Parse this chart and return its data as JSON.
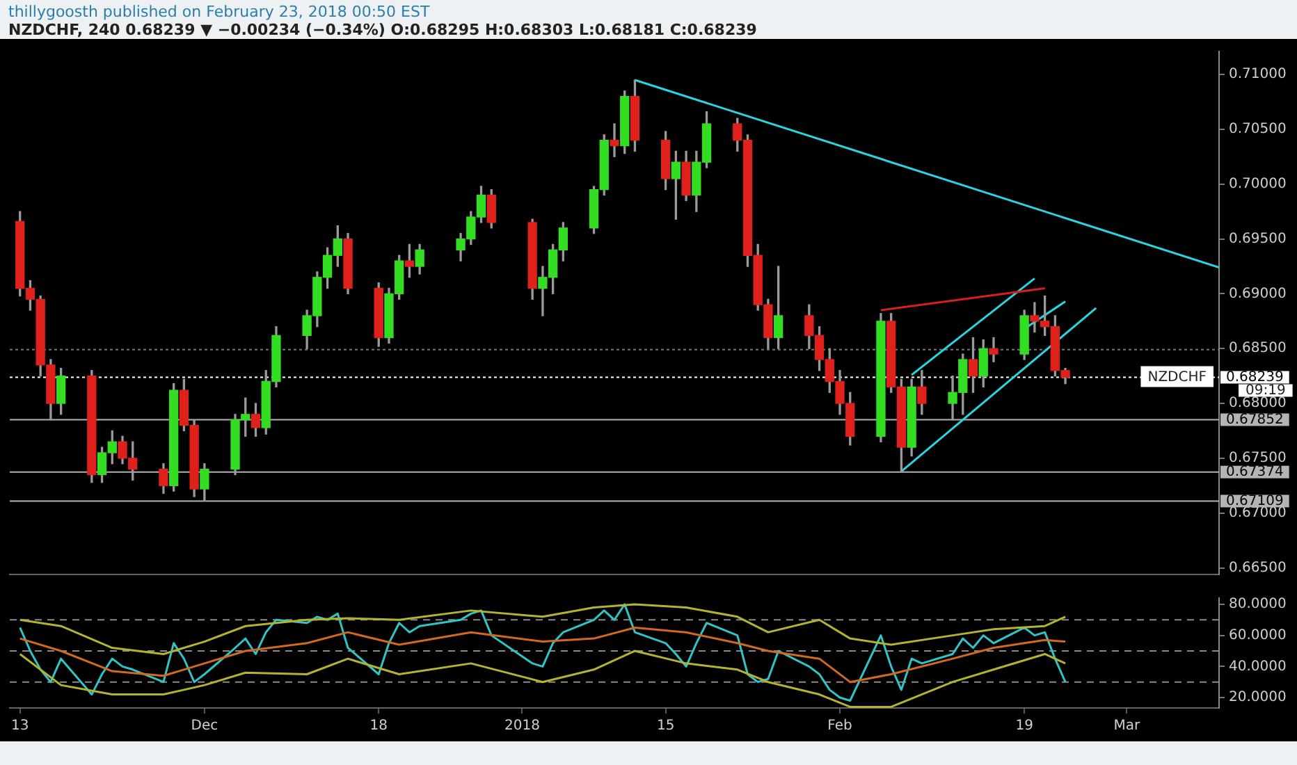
{
  "chart_data": [
    {
      "type": "candlestick",
      "title": "thillygoosth published on February 23, 2018 00:50 EST",
      "subtitle": "NZDCHF, 240 0.68239 ▼ −0.00234 (−0.34%) O:0.68295 H:0.68303 L:0.68181 C:0.68239",
      "x": [
        "2017-11-13",
        "2017-11-14",
        "2017-11-15",
        "2017-11-16",
        "2017-11-17",
        "2017-11-20",
        "2017-11-21",
        "2017-11-22",
        "2017-11-23",
        "2017-11-24",
        "2017-11-27",
        "2017-11-28",
        "2017-11-29",
        "2017-11-30",
        "2017-12-01",
        "2017-12-04",
        "2017-12-05",
        "2017-12-06",
        "2017-12-07",
        "2017-12-08",
        "2017-12-11",
        "2017-12-12",
        "2017-12-13",
        "2017-12-14",
        "2017-12-15",
        "2017-12-18",
        "2017-12-19",
        "2017-12-20",
        "2017-12-21",
        "2017-12-22",
        "2017-12-26",
        "2017-12-27",
        "2017-12-28",
        "2017-12-29",
        "2018-01-02",
        "2018-01-03",
        "2018-01-04",
        "2018-01-05",
        "2018-01-08",
        "2018-01-09",
        "2018-01-10",
        "2018-01-11",
        "2018-01-12",
        "2018-01-15",
        "2018-01-16",
        "2018-01-17",
        "2018-01-18",
        "2018-01-19",
        "2018-01-22",
        "2018-01-23",
        "2018-01-24",
        "2018-01-25",
        "2018-01-26",
        "2018-01-29",
        "2018-01-30",
        "2018-01-31",
        "2018-02-01",
        "2018-02-02",
        "2018-02-05",
        "2018-02-06",
        "2018-02-07",
        "2018-02-08",
        "2018-02-09",
        "2018-02-12",
        "2018-02-13",
        "2018-02-14",
        "2018-02-15",
        "2018-02-16",
        "2018-02-19",
        "2018-02-20",
        "2018-02-21",
        "2018-02-22",
        "2018-02-23"
      ],
      "ohlc": [
        [
          0.6966,
          0.6975,
          0.6898,
          0.6905
        ],
        [
          0.6905,
          0.6912,
          0.6885,
          0.6895
        ],
        [
          0.6895,
          0.6898,
          0.6825,
          0.6835
        ],
        [
          0.6835,
          0.684,
          0.6785,
          0.68
        ],
        [
          0.68,
          0.6832,
          0.679,
          0.6825
        ],
        [
          0.6825,
          0.683,
          0.6728,
          0.6735
        ],
        [
          0.6735,
          0.676,
          0.6728,
          0.6755
        ],
        [
          0.6755,
          0.6775,
          0.6745,
          0.6765
        ],
        [
          0.6765,
          0.677,
          0.6745,
          0.675
        ],
        [
          0.675,
          0.6765,
          0.673,
          0.674
        ],
        [
          0.674,
          0.6745,
          0.6718,
          0.6725
        ],
        [
          0.6725,
          0.6818,
          0.672,
          0.6812
        ],
        [
          0.6812,
          0.6822,
          0.6775,
          0.678
        ],
        [
          0.678,
          0.6785,
          0.6715,
          0.6722
        ],
        [
          0.6722,
          0.6745,
          0.6711,
          0.674
        ],
        [
          0.674,
          0.679,
          0.6735,
          0.6785
        ],
        [
          0.6785,
          0.6805,
          0.677,
          0.679
        ],
        [
          0.679,
          0.68,
          0.677,
          0.6778
        ],
        [
          0.6778,
          0.683,
          0.6772,
          0.682
        ],
        [
          0.682,
          0.687,
          0.6815,
          0.6862
        ],
        [
          0.6862,
          0.6885,
          0.685,
          0.688
        ],
        [
          0.688,
          0.692,
          0.687,
          0.6915
        ],
        [
          0.6915,
          0.6942,
          0.6905,
          0.6935
        ],
        [
          0.6935,
          0.6962,
          0.6925,
          0.695
        ],
        [
          0.695,
          0.6955,
          0.69,
          0.6905
        ],
        [
          0.6905,
          0.691,
          0.6852,
          0.686
        ],
        [
          0.686,
          0.6905,
          0.6855,
          0.69
        ],
        [
          0.69,
          0.6935,
          0.6895,
          0.693
        ],
        [
          0.693,
          0.6945,
          0.6915,
          0.6925
        ],
        [
          0.6925,
          0.6945,
          0.6918,
          0.694
        ],
        [
          0.694,
          0.6955,
          0.693,
          0.695
        ],
        [
          0.695,
          0.6975,
          0.6945,
          0.697
        ],
        [
          0.697,
          0.6998,
          0.6965,
          0.699
        ],
        [
          0.699,
          0.6995,
          0.696,
          0.6965
        ],
        [
          0.6965,
          0.6968,
          0.6895,
          0.6905
        ],
        [
          0.6905,
          0.6925,
          0.688,
          0.6915
        ],
        [
          0.6915,
          0.6945,
          0.69,
          0.694
        ],
        [
          0.694,
          0.6965,
          0.693,
          0.696
        ],
        [
          0.696,
          0.6998,
          0.6955,
          0.6995
        ],
        [
          0.6995,
          0.7045,
          0.699,
          0.704
        ],
        [
          0.704,
          0.7055,
          0.7025,
          0.7035
        ],
        [
          0.7035,
          0.7085,
          0.7028,
          0.708
        ],
        [
          0.708,
          0.7095,
          0.703,
          0.704
        ],
        [
          0.704,
          0.7048,
          0.6995,
          0.7005
        ],
        [
          0.7005,
          0.703,
          0.6968,
          0.702
        ],
        [
          0.702,
          0.703,
          0.6985,
          0.699
        ],
        [
          0.699,
          0.703,
          0.6975,
          0.702
        ],
        [
          0.702,
          0.7066,
          0.7015,
          0.7055
        ],
        [
          0.7055,
          0.706,
          0.703,
          0.704
        ],
        [
          0.704,
          0.7045,
          0.6925,
          0.6935
        ],
        [
          0.6935,
          0.6945,
          0.6885,
          0.689
        ],
        [
          0.689,
          0.6895,
          0.685,
          0.686
        ],
        [
          0.686,
          0.6925,
          0.685,
          0.688
        ],
        [
          0.688,
          0.689,
          0.685,
          0.6862
        ],
        [
          0.6862,
          0.687,
          0.683,
          0.684
        ],
        [
          0.684,
          0.685,
          0.681,
          0.682
        ],
        [
          0.682,
          0.683,
          0.679,
          0.68
        ],
        [
          0.68,
          0.681,
          0.6762,
          0.677
        ],
        [
          0.677,
          0.6882,
          0.6765,
          0.6875
        ],
        [
          0.6875,
          0.6882,
          0.681,
          0.6815
        ],
        [
          0.6815,
          0.6822,
          0.6737,
          0.676
        ],
        [
          0.676,
          0.6822,
          0.6752,
          0.6815
        ],
        [
          0.6815,
          0.683,
          0.679,
          0.68
        ],
        [
          0.68,
          0.6825,
          0.6785,
          0.681
        ],
        [
          0.681,
          0.6845,
          0.679,
          0.684
        ],
        [
          0.684,
          0.686,
          0.681,
          0.6825
        ],
        [
          0.6825,
          0.6858,
          0.6815,
          0.685
        ],
        [
          0.685,
          0.686,
          0.6838,
          0.6845
        ],
        [
          0.6845,
          0.6885,
          0.684,
          0.688
        ],
        [
          0.688,
          0.6892,
          0.6865,
          0.6875
        ],
        [
          0.6875,
          0.6898,
          0.6862,
          0.687
        ],
        [
          0.687,
          0.688,
          0.6825,
          0.683
        ],
        [
          0.683,
          0.6832,
          0.6818,
          0.68239
        ]
      ],
      "series": [
        {
          "type": "line",
          "color": "#2ad4e0",
          "x": [
            "2018-01-12",
            "2018-03-10"
          ],
          "values": [
            0.7095,
            0.6924
          ]
        },
        {
          "type": "line",
          "color": "#d81e1e",
          "x": [
            "2018-02-05",
            "2018-02-21"
          ],
          "values": [
            0.6885,
            0.6905
          ]
        },
        {
          "type": "line",
          "color": "#2ad4e0",
          "x": [
            "2018-02-07",
            "2018-02-26"
          ],
          "values": [
            0.6738,
            0.6887
          ]
        },
        {
          "type": "line",
          "color": "#2ad4e0",
          "x": [
            "2018-02-08",
            "2018-02-20"
          ],
          "values": [
            0.6826,
            0.6914
          ]
        },
        {
          "type": "line",
          "color": "#2ad4e0",
          "x": [
            "2018-02-19",
            "2018-02-23"
          ],
          "values": [
            0.6868,
            0.6893
          ]
        }
      ],
      "xlim": [
        "2017-11-12",
        "2018-03-10"
      ],
      "ylim": [
        0.6644,
        0.7121
      ],
      "yticks": [
        {
          "value": 0.665,
          "label": "0.66500"
        },
        {
          "value": 0.67,
          "label": "0.67000"
        },
        {
          "value": 0.675,
          "label": "0.67500"
        },
        {
          "value": 0.68,
          "label": "0.68000"
        },
        {
          "value": 0.685,
          "label": "0.68500"
        },
        {
          "value": 0.69,
          "label": "0.69000"
        },
        {
          "value": 0.695,
          "label": "0.69500"
        },
        {
          "value": 0.7,
          "label": "0.70000"
        },
        {
          "value": 0.705,
          "label": "0.70500"
        },
        {
          "value": 0.71,
          "label": "0.71000"
        }
      ],
      "tick_labels": "y",
      "grid": false,
      "legend": false,
      "ref_lines": [
        {
          "axis": "y",
          "value": 0.6849,
          "color": "#777777",
          "line_style": "dotted"
        },
        {
          "axis": "y",
          "value": 0.68239,
          "label": "0.68239",
          "color": "#ffffff",
          "line_style": "dotted"
        },
        {
          "axis": "y",
          "value": 0.67852,
          "label": "0.67852",
          "color": "#b4b4b4",
          "line_style": "solid"
        },
        {
          "axis": "y",
          "value": 0.67374,
          "label": "0.67374",
          "color": "#b4b4b4",
          "line_style": "solid"
        },
        {
          "axis": "y",
          "value": 0.67109,
          "label": "0.67109",
          "color": "#b4b4b4",
          "line_style": "solid"
        }
      ],
      "annotations": [
        {
          "text": "NZDCHF",
          "y": 0.68239
        },
        "09:19"
      ]
    },
    {
      "type": "line",
      "series": [
        {
          "color": "#b3b330",
          "x": [
            "2017-11-13",
            "2017-11-17",
            "2017-11-22",
            "2017-11-27",
            "2017-12-01",
            "2017-12-05",
            "2017-12-11",
            "2017-12-15",
            "2017-12-20",
            "2017-12-27",
            "2018-01-03",
            "2018-01-08",
            "2018-01-12",
            "2018-01-17",
            "2018-01-22",
            "2018-01-25",
            "2018-01-30",
            "2018-02-02",
            "2018-02-06",
            "2018-02-12",
            "2018-02-16",
            "2018-02-21",
            "2018-02-23"
          ],
          "values": [
            70,
            66,
            52,
            48,
            56,
            66,
            70,
            71,
            70,
            76,
            72,
            78,
            80,
            78,
            72,
            62,
            70,
            58,
            54,
            60,
            64,
            66,
            72
          ]
        },
        {
          "color": "#b3b330",
          "x": [
            "2017-11-13",
            "2017-11-17",
            "2017-11-22",
            "2017-11-27",
            "2017-12-01",
            "2017-12-05",
            "2017-12-11",
            "2017-12-15",
            "2017-12-20",
            "2017-12-27",
            "2018-01-03",
            "2018-01-08",
            "2018-01-12",
            "2018-01-17",
            "2018-01-22",
            "2018-01-25",
            "2018-01-30",
            "2018-02-02",
            "2018-02-06",
            "2018-02-12",
            "2018-02-16",
            "2018-02-21",
            "2018-02-23"
          ],
          "values": [
            48,
            28,
            22,
            22,
            28,
            36,
            35,
            45,
            35,
            42,
            30,
            38,
            50,
            42,
            38,
            30,
            22,
            14,
            14,
            30,
            38,
            48,
            42
          ]
        },
        {
          "color": "#d2691e",
          "x": [
            "2017-11-13",
            "2017-11-17",
            "2017-11-22",
            "2017-11-27",
            "2017-12-01",
            "2017-12-05",
            "2017-12-11",
            "2017-12-15",
            "2017-12-20",
            "2017-12-27",
            "2018-01-03",
            "2018-01-08",
            "2018-01-12",
            "2018-01-17",
            "2018-01-22",
            "2018-01-25",
            "2018-01-30",
            "2018-02-02",
            "2018-02-06",
            "2018-02-12",
            "2018-02-16",
            "2018-02-21",
            "2018-02-23"
          ],
          "values": [
            58,
            50,
            37,
            34,
            42,
            50,
            55,
            62,
            54,
            62,
            56,
            58,
            65,
            62,
            55,
            50,
            45,
            30,
            35,
            45,
            52,
            57,
            56
          ]
        },
        {
          "color": "#2fc4c8",
          "x": [
            "2017-11-13",
            "2017-11-14",
            "2017-11-15",
            "2017-11-16",
            "2017-11-17",
            "2017-11-20",
            "2017-11-21",
            "2017-11-22",
            "2017-11-23",
            "2017-11-24",
            "2017-11-27",
            "2017-11-28",
            "2017-11-29",
            "2017-11-30",
            "2017-12-01",
            "2017-12-04",
            "2017-12-05",
            "2017-12-06",
            "2017-12-07",
            "2017-12-08",
            "2017-12-11",
            "2017-12-12",
            "2017-12-13",
            "2017-12-14",
            "2017-12-15",
            "2017-12-18",
            "2017-12-19",
            "2017-12-20",
            "2017-12-21",
            "2017-12-22",
            "2017-12-26",
            "2017-12-27",
            "2017-12-28",
            "2017-12-29",
            "2018-01-02",
            "2018-01-03",
            "2018-01-04",
            "2018-01-05",
            "2018-01-08",
            "2018-01-09",
            "2018-01-10",
            "2018-01-11",
            "2018-01-12",
            "2018-01-15",
            "2018-01-16",
            "2018-01-17",
            "2018-01-18",
            "2018-01-19",
            "2018-01-22",
            "2018-01-23",
            "2018-01-24",
            "2018-01-25",
            "2018-01-26",
            "2018-01-29",
            "2018-01-30",
            "2018-01-31",
            "2018-02-01",
            "2018-02-02",
            "2018-02-05",
            "2018-02-06",
            "2018-02-07",
            "2018-02-08",
            "2018-02-09",
            "2018-02-12",
            "2018-02-13",
            "2018-02-14",
            "2018-02-15",
            "2018-02-16",
            "2018-02-19",
            "2018-02-20",
            "2018-02-21",
            "2018-02-22",
            "2018-02-23"
          ],
          "values": [
            65,
            50,
            38,
            30,
            45,
            22,
            35,
            45,
            40,
            38,
            30,
            55,
            45,
            30,
            35,
            52,
            58,
            48,
            62,
            70,
            68,
            72,
            70,
            74,
            52,
            35,
            55,
            68,
            62,
            66,
            70,
            74,
            76,
            60,
            42,
            40,
            55,
            62,
            70,
            76,
            70,
            80,
            62,
            55,
            48,
            40,
            55,
            68,
            60,
            35,
            30,
            32,
            50,
            40,
            35,
            25,
            20,
            18,
            60,
            40,
            25,
            45,
            42,
            48,
            58,
            52,
            60,
            55,
            65,
            60,
            62,
            45,
            30
          ]
        }
      ],
      "xlim": [
        "2017-11-12",
        "2018-03-10"
      ],
      "xticks": [
        {
          "value": "2017-11-13",
          "label": "13"
        },
        {
          "value": "2017-12-01",
          "label": "Dec"
        },
        {
          "value": "2017-12-18",
          "label": "18"
        },
        {
          "value": "2018-01-01",
          "label": "2018"
        },
        {
          "value": "2018-01-15",
          "label": "15"
        },
        {
          "value": "2018-02-01",
          "label": "Feb"
        },
        {
          "value": "2018-02-19",
          "label": "19"
        },
        {
          "value": "2018-03-01",
          "label": "Mar"
        }
      ],
      "ylim": [
        13.3,
        84
      ],
      "yticks": [
        {
          "value": 20,
          "label": "20.0000"
        },
        {
          "value": 40,
          "label": "40.0000"
        },
        {
          "value": 60,
          "label": "60.0000"
        },
        {
          "value": 80,
          "label": "80.0000"
        }
      ],
      "grid": false,
      "legend": false,
      "marker": "none",
      "ref_lines": [
        {
          "axis": "y",
          "value": 70,
          "color": "#8a8a8a",
          "line_style": "dashed"
        },
        {
          "axis": "y",
          "value": 50,
          "color": "#8a8a8a",
          "line_style": "dashed"
        },
        {
          "axis": "y",
          "value": 30,
          "color": "#8a8a8a",
          "line_style": "dashed"
        }
      ]
    }
  ]
}
